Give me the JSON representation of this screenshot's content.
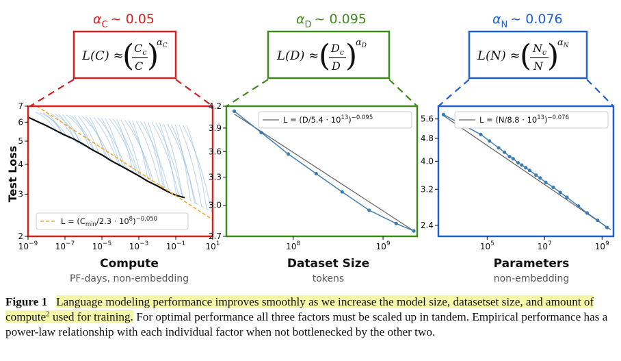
{
  "panels": [
    {
      "id": "compute",
      "alpha_symbol": "α",
      "alpha_sub": "C",
      "alpha_value": "~ 0.05",
      "formula_lhs": "L(C) ≈",
      "formula_num": "C",
      "formula_num_sub": "c",
      "formula_den": "C",
      "formula_exp": "α",
      "formula_exp_sub": "C",
      "xlabel": "Compute",
      "xsublabel": "PF-days, non-embedding",
      "color": "#d42020"
    },
    {
      "id": "dataset",
      "alpha_symbol": "α",
      "alpha_sub": "D",
      "alpha_value": "~ 0.095",
      "formula_lhs": "L(D) ≈",
      "formula_num": "D",
      "formula_num_sub": "c",
      "formula_den": "D",
      "formula_exp": "α",
      "formula_exp_sub": "D",
      "xlabel": "Dataset Size",
      "xsublabel": "tokens",
      "color": "#3e8a1c"
    },
    {
      "id": "params",
      "alpha_symbol": "α",
      "alpha_sub": "N",
      "alpha_value": "~ 0.076",
      "formula_lhs": "L(N) ≈",
      "formula_num": "N",
      "formula_num_sub": "c",
      "formula_den": "N",
      "formula_exp": "α",
      "formula_exp_sub": "N",
      "xlabel": "Parameters",
      "xsublabel": "non-embedding",
      "color": "#1f5fd0"
    }
  ],
  "ylabel": "Test Loss",
  "chart_data": [
    {
      "type": "line",
      "title": "Compute",
      "xlabel": "PF-days, non-embedding",
      "ylabel": "Test Loss",
      "xscale": "log",
      "yscale": "log",
      "xlim": [
        1e-09,
        10
      ],
      "ylim": [
        2,
        7
      ],
      "x_ticks": [
        1e-09,
        1e-07,
        1e-05,
        0.001,
        0.1,
        10
      ],
      "x_tick_labels": [
        [
          "10",
          "−9"
        ],
        [
          "10",
          "−7"
        ],
        [
          "10",
          "−5"
        ],
        [
          "10",
          "−3"
        ],
        [
          "10",
          "−1"
        ],
        [
          "10",
          "1"
        ]
      ],
      "y_ticks": [
        2,
        3,
        4,
        5,
        6,
        7
      ],
      "y_tick_labels": [
        "2",
        "3",
        "4",
        "5",
        "6",
        "7"
      ],
      "series": [
        {
          "name": "frontier",
          "x": [
            1e-09,
            3e-09,
            1e-08,
            3e-08,
            1e-07,
            3e-07,
            1e-06,
            3e-06,
            1e-05,
            3e-05,
            0.0001,
            0.0003,
            0.001,
            0.003,
            0.01,
            0.03,
            0.1,
            0.3
          ],
          "y": [
            6.3,
            6.05,
            5.8,
            5.55,
            5.3,
            5.1,
            4.85,
            4.6,
            4.38,
            4.15,
            3.95,
            3.77,
            3.58,
            3.4,
            3.25,
            3.1,
            2.97,
            2.9
          ]
        },
        {
          "name": "fit",
          "x": [
            3e-09,
            10
          ],
          "y": [
            7.0,
            2.35
          ]
        }
      ],
      "legend": {
        "text": "L = (C",
        "sub": "min",
        "rest": "/2.3 · 10",
        "sup1": "8",
        "close": ")",
        "sup2": "−0.050",
        "position": "bottom-left"
      }
    },
    {
      "type": "line",
      "title": "Dataset Size",
      "xlabel": "tokens",
      "ylabel": "",
      "xscale": "log",
      "yscale": "log",
      "xlim": [
        18000000.0,
        2400000000.0
      ],
      "ylim": [
        2.7,
        4.2
      ],
      "x_ticks": [
        100000000.0,
        1000000000.0
      ],
      "x_tick_labels": [
        [
          "10",
          "8"
        ],
        [
          "10",
          "9"
        ]
      ],
      "y_ticks": [
        2.7,
        3.0,
        3.3,
        3.6,
        3.9,
        4.2
      ],
      "y_tick_labels": [
        "2.7",
        "3.0",
        "3.3",
        "3.6",
        "3.9",
        "4.2"
      ],
      "series": [
        {
          "name": "data",
          "x": [
            22000000.0,
            44000000.0,
            88000000.0,
            180000000.0,
            350000000.0,
            700000000.0,
            1400000000.0,
            2200000000.0
          ],
          "y": [
            4.13,
            3.84,
            3.57,
            3.34,
            3.14,
            2.95,
            2.82,
            2.75
          ]
        },
        {
          "name": "fit",
          "x": [
            22000000.0,
            2200000000.0
          ],
          "y": [
            4.09,
            2.75
          ]
        }
      ],
      "legend": {
        "text": "L = (D/5.4 · 10",
        "sup1": "13",
        "close": ")",
        "sup2": "−0.095",
        "position": "top-right"
      }
    },
    {
      "type": "line",
      "title": "Parameters",
      "xlabel": "non-embedding",
      "ylabel": "",
      "xscale": "log",
      "yscale": "log",
      "xlim": [
        2000.0,
        2500000000.0
      ],
      "ylim": [
        2.2,
        6.2
      ],
      "x_ticks": [
        100000.0,
        10000000.0,
        1000000000.0
      ],
      "x_tick_labels": [
        [
          "10",
          "5"
        ],
        [
          "10",
          "7"
        ],
        [
          "10",
          "9"
        ]
      ],
      "y_ticks": [
        2.4,
        3.2,
        4.0,
        4.8,
        5.6
      ],
      "y_tick_labels": [
        "2.4",
        "3.2",
        "4.0",
        "4.8",
        "5.6"
      ],
      "series": [
        {
          "name": "data",
          "x": [
            3000.0,
            60000.0,
            120000.0,
            250000.0,
            400000.0,
            600000.0,
            800000.0,
            1200000.0,
            1600000.0,
            2200000.0,
            3000000.0,
            5000000.0,
            7000000.0,
            11000000.0,
            20000000.0,
            35000000.0,
            60000000.0,
            150000000.0,
            300000000.0,
            700000000.0,
            1500000000.0
          ],
          "y": [
            5.8,
            4.95,
            4.7,
            4.45,
            4.3,
            4.15,
            4.08,
            3.95,
            3.88,
            3.8,
            3.72,
            3.58,
            3.5,
            3.38,
            3.25,
            3.12,
            3.0,
            2.8,
            2.65,
            2.5,
            2.36
          ]
        },
        {
          "name": "fit",
          "x": [
            3000.0,
            2000000000.0
          ],
          "y": [
            5.75,
            2.32
          ]
        }
      ],
      "legend": {
        "text": "L = (N/8.8 · 10",
        "sup1": "13",
        "close": ")",
        "sup2": "−0.076",
        "position": "top-right"
      }
    }
  ],
  "caption": {
    "label": "Figure 1",
    "highlighted_part1": "Language modeling performance improves smoothly as we increase the model size, datasetset size, and amount of compute",
    "footnote": "2",
    "highlighted_part2": "used for training.",
    "rest": "For optimal performance all three factors must be scaled up in tandem. Empirical performance has a power-law relationship with each individual factor when not bottlenecked by the other two."
  }
}
